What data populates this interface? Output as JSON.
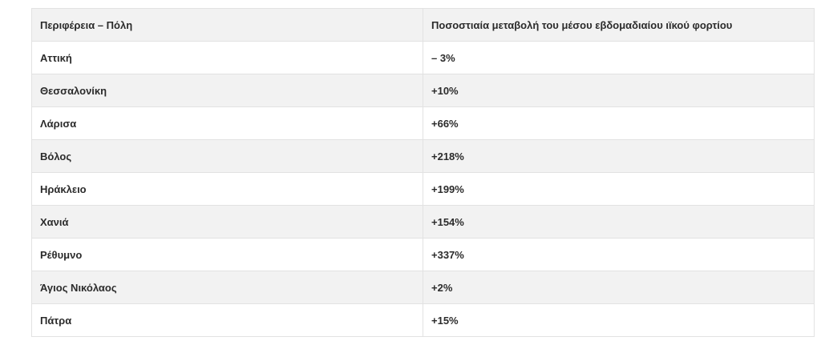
{
  "table": {
    "headers": [
      "Περιφέρεια – Πόλη",
      "Ποσοστιαία μεταβολή του μέσου εβδομαδιαίου ιϊκού φορτίου"
    ],
    "rows": [
      [
        "Αττική",
        "– 3%"
      ],
      [
        "Θεσσαλονίκη",
        "+10%"
      ],
      [
        "Λάρισα",
        "+66%"
      ],
      [
        "Βόλος",
        "+218%"
      ],
      [
        "Ηράκλειο",
        "+199%"
      ],
      [
        "Χανιά",
        "+154%"
      ],
      [
        "Ρέθυμνο",
        "+337%"
      ],
      [
        "Άγιος Νικόλαος",
        "+2%"
      ],
      [
        "Πάτρα",
        "+15%"
      ]
    ]
  }
}
